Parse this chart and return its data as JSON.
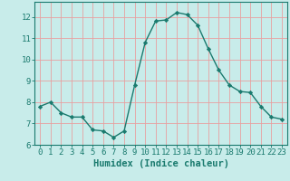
{
  "x": [
    0,
    1,
    2,
    3,
    4,
    5,
    6,
    7,
    8,
    9,
    10,
    11,
    12,
    13,
    14,
    15,
    16,
    17,
    18,
    19,
    20,
    21,
    22,
    23
  ],
  "y": [
    7.8,
    8.0,
    7.5,
    7.3,
    7.3,
    6.7,
    6.65,
    6.35,
    6.65,
    8.8,
    10.8,
    11.8,
    11.85,
    12.2,
    12.1,
    11.6,
    10.5,
    9.5,
    8.8,
    8.5,
    8.45,
    7.8,
    7.3,
    7.2
  ],
  "line_color": "#1a7a6e",
  "marker": "D",
  "marker_size": 2.2,
  "bg_color": "#c8ecea",
  "grid_color": "#e8a0a0",
  "xlabel": "Humidex (Indice chaleur)",
  "xlim": [
    -0.5,
    23.5
  ],
  "ylim": [
    6,
    12.7
  ],
  "yticks": [
    6,
    7,
    8,
    9,
    10,
    11,
    12
  ],
  "xticks": [
    0,
    1,
    2,
    3,
    4,
    5,
    6,
    7,
    8,
    9,
    10,
    11,
    12,
    13,
    14,
    15,
    16,
    17,
    18,
    19,
    20,
    21,
    22,
    23
  ],
  "tick_label_fontsize": 6.5,
  "xlabel_fontsize": 7.5,
  "tick_color": "#1a7a6e",
  "axis_color": "#1a7a6e",
  "spine_color": "#1a7a6e"
}
